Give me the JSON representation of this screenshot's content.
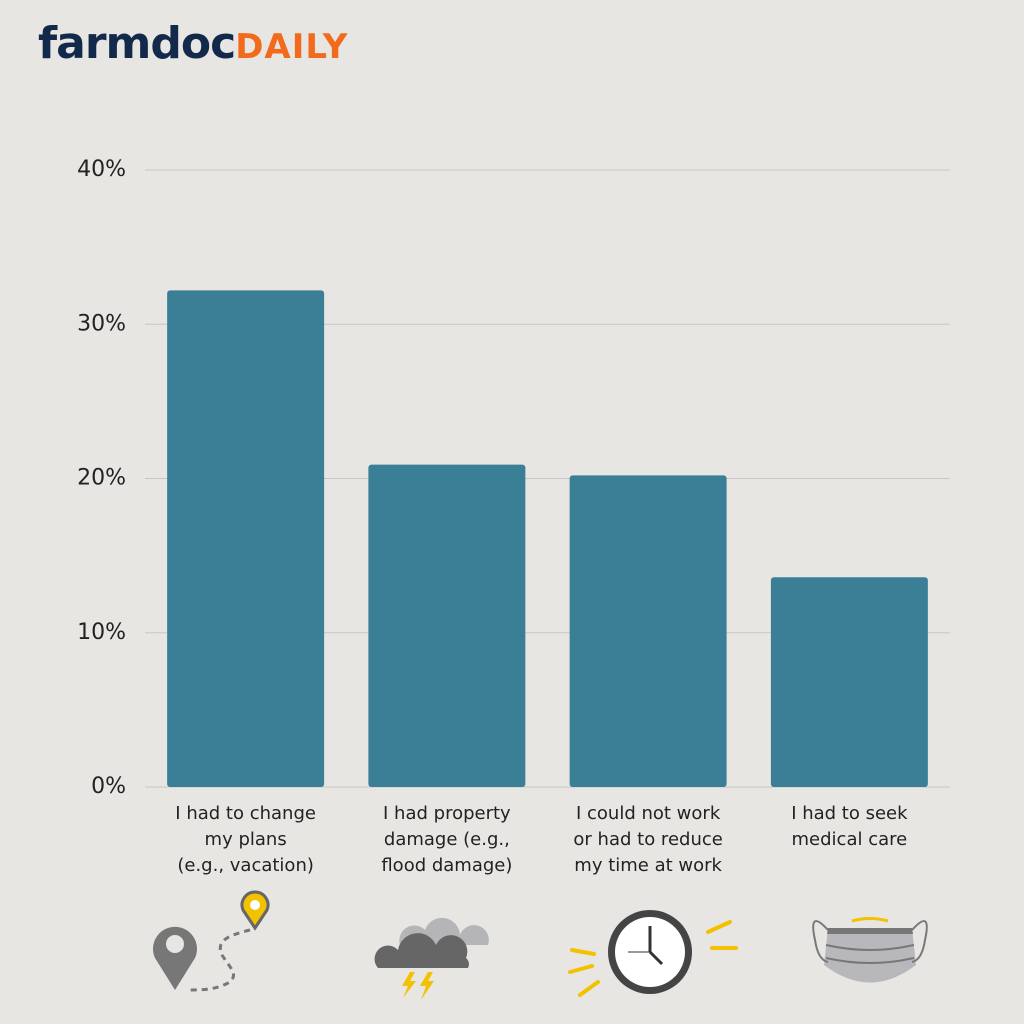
{
  "logo": {
    "main": "farmdoc",
    "accent": "DAILY"
  },
  "chart_data": {
    "type": "bar",
    "categories": [
      "I had to change\nmy plans\n(e.g., vacation)",
      "I had property\ndamage (e.g.,\nflood damage)",
      "I could not work\nor had to reduce\nmy time at work",
      "I had to seek\nmedical care"
    ],
    "values": [
      32.2,
      20.9,
      20.2,
      13.6
    ],
    "color": "#3b7f96",
    "ylim": [
      0,
      40
    ],
    "yticks": [
      {
        "value": 0,
        "label": "0%"
      },
      {
        "value": 10,
        "label": "10%"
      },
      {
        "value": 20,
        "label": "20%"
      },
      {
        "value": 30,
        "label": "30%"
      },
      {
        "value": 40,
        "label": "40%"
      }
    ],
    "grid": true
  }
}
